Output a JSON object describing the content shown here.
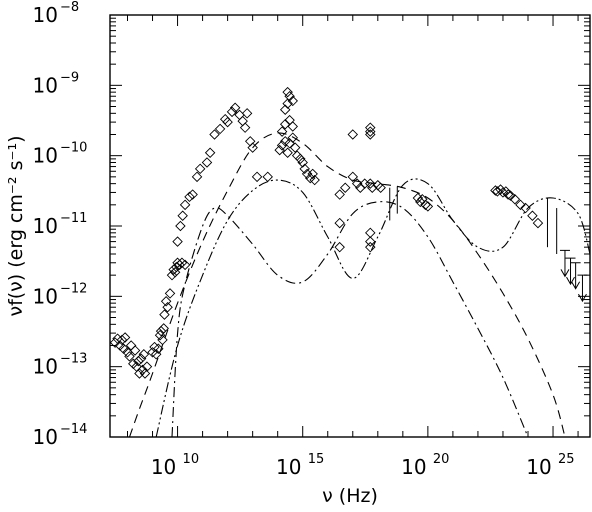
{
  "chart_data": {
    "type": "scatter",
    "title": "",
    "xlabel": "ν (Hz)",
    "ylabel": "νf(ν) (erg cm⁻² s⁻¹)",
    "x_scale": "log",
    "y_scale": "log",
    "xlim": [
      20000000.0,
      3e+26
    ],
    "ylim": [
      1e-14,
      1e-08
    ],
    "grid": false,
    "legend": "none",
    "x_ticks": [
      {
        "value": 10000000000.0,
        "base": "10",
        "exp": "10"
      },
      {
        "value": 1000000000000000.0,
        "base": "10",
        "exp": "15"
      },
      {
        "value": 1e+20,
        "base": "10",
        "exp": "20"
      },
      {
        "value": 1e+25,
        "base": "10",
        "exp": "25"
      }
    ],
    "y_ticks": [
      {
        "value": 1e-14,
        "base": "10",
        "exp": "−14"
      },
      {
        "value": 1e-13,
        "base": "10",
        "exp": "−13"
      },
      {
        "value": 1e-12,
        "base": "10",
        "exp": "−12"
      },
      {
        "value": 1e-11,
        "base": "10",
        "exp": "−11"
      },
      {
        "value": 1e-10,
        "base": "10",
        "exp": "−10"
      },
      {
        "value": 1e-09,
        "base": "10",
        "exp": "−9"
      },
      {
        "value": 1e-08,
        "base": "10",
        "exp": "−8"
      }
    ],
    "series": [
      {
        "marker": "diamond-open",
        "points": [
          [
            32000000.0,
            2.2e-13
          ],
          [
            40000000.0,
            2.5e-13
          ],
          [
            50000000.0,
            2e-13
          ],
          [
            60000000.0,
            2.4e-13
          ],
          [
            70000000.0,
            1.8e-13
          ],
          [
            80000000.0,
            2.6e-13
          ],
          [
            100000000.0,
            1.6e-13
          ],
          [
            120000000.0,
            1.4e-13
          ],
          [
            140000000.0,
            2e-13
          ],
          [
            170000000.0,
            1.1e-13
          ],
          [
            200000000.0,
            1.7e-13
          ],
          [
            230000000.0,
            1e-13
          ],
          [
            270000000.0,
            1.2e-13
          ],
          [
            300000000.0,
            8e-14
          ],
          [
            350000000.0,
            1.3e-13
          ],
          [
            400000000.0,
            9e-14
          ],
          [
            450000000.0,
            1.5e-13
          ],
          [
            500000000.0,
            8e-14
          ],
          [
            600000000.0,
            1e-13
          ],
          [
            1000000000.0,
            1.6e-13
          ],
          [
            1200000000.0,
            1.9e-13
          ],
          [
            1400000000.0,
            1.5e-13
          ],
          [
            1700000000.0,
            1.8e-13
          ],
          [
            2000000000.0,
            2.8e-13
          ],
          [
            2200000000.0,
            3.2e-13
          ],
          [
            2500000000.0,
            2.4e-13
          ],
          [
            2800000000.0,
            3.5e-13
          ],
          [
            3000000000.0,
            5.5e-13
          ],
          [
            3500000000.0,
            8.5e-13
          ],
          [
            4000000000.0,
            7e-13
          ],
          [
            5000000000.0,
            1.1e-12
          ],
          [
            6000000000.0,
            2e-12
          ],
          [
            7000000000.0,
            2.4e-12
          ],
          [
            8000000000.0,
            2.2e-12
          ],
          [
            9000000000.0,
            2.6e-12
          ],
          [
            10000000000.0,
            3e-12
          ],
          [
            12000000000.0,
            2.8e-12
          ],
          [
            15000000000.0,
            3e-12
          ],
          [
            20000000000.0,
            2.8e-12
          ],
          [
            10000000000.0,
            6e-12
          ],
          [
            13000000000.0,
            1e-11
          ],
          [
            16000000000.0,
            1.4e-11
          ],
          [
            20000000000.0,
            2e-11
          ],
          [
            30000000000.0,
            2.6e-11
          ],
          [
            40000000000.0,
            2.8e-11
          ],
          [
            60000000000.0,
            5e-11
          ],
          [
            80000000000.0,
            6.5e-11
          ],
          [
            150000000000.0,
            8e-11
          ],
          [
            200000000000.0,
            1.1e-10
          ],
          [
            300000000000.0,
            2e-10
          ],
          [
            500000000000.0,
            2.4e-10
          ],
          [
            800000000000.0,
            3.3e-10
          ],
          [
            1000000000000.0,
            3e-10
          ],
          [
            1500000000000.0,
            4.2e-10
          ],
          [
            2000000000000.0,
            4.8e-10
          ],
          [
            3000000000000.0,
            3.8e-10
          ],
          [
            4000000000000.0,
            3.1e-10
          ],
          [
            5000000000000.0,
            2.5e-10
          ],
          [
            6000000000000.0,
            4e-10
          ],
          [
            8000000000000.0,
            1.6e-10
          ],
          [
            10000000000000.0,
            1.3e-10
          ],
          [
            120000000000000.0,
            1.2e-10
          ],
          [
            150000000000000.0,
            1.4e-10
          ],
          [
            200000000000000.0,
            1.6e-10
          ],
          [
            250000000000000.0,
            1.1e-10
          ],
          [
            300000000000000.0,
            1.5e-10
          ],
          [
            400000000000000.0,
            1.8e-10
          ],
          [
            500000000000000.0,
            1.3e-10
          ],
          [
            600000000000000.0,
            1e-10
          ],
          [
            800000000000000.0,
            9e-11
          ],
          [
            1000000000000000.0,
            8e-11
          ],
          [
            1200000000000000.0,
            6.5e-11
          ],
          [
            1500000000000000.0,
            5.5e-11
          ],
          [
            2000000000000000.0,
            4.8e-11
          ],
          [
            2500000000000000.0,
            5.5e-11
          ],
          [
            3000000000000000.0,
            4.5e-11
          ],
          [
            150000000000000.0,
            2.2e-10
          ],
          [
            200000000000000.0,
            2.8e-10
          ],
          [
            300000000000000.0,
            3.2e-10
          ],
          [
            400000000000000.0,
            2.6e-10
          ],
          [
            200000000000000.0,
            4.5e-10
          ],
          [
            250000000000000.0,
            5.5e-10
          ],
          [
            300000000000000.0,
            7e-10
          ],
          [
            400000000000000.0,
            6e-10
          ],
          [
            250000000000000.0,
            8e-10
          ],
          [
            15000000000000.0,
            5e-11
          ],
          [
            40000000000000.0,
            5e-11
          ],
          [
            1e+17,
            5e-11
          ],
          [
            1.5e+17,
            4e-11
          ],
          [
            2e+17,
            3.5e-11
          ],
          [
            3e+17,
            4e-11
          ],
          [
            5e+17,
            4e-11
          ],
          [
            6e+17,
            3.5e-11
          ],
          [
            1e+18,
            3.8e-11
          ],
          [
            1.3e+18,
            3.5e-11
          ],
          [
            3e+16,
            1.1e-11
          ],
          [
            3e+16,
            2.8e-11
          ],
          [
            5e+16,
            3.5e-11
          ],
          [
            5e+17,
            8e-12
          ],
          [
            5e+17,
            6e-12
          ],
          [
            5e+17,
            5e-12
          ],
          [
            5e+17,
            2.5e-10
          ],
          [
            5e+17,
            2e-10
          ],
          [
            5e+17,
            2.2e-10
          ],
          [
            1e+17,
            2e-10
          ],
          [
            3e+16,
            5e-12
          ],
          [
            5e+19,
            2.2e-11
          ],
          [
            6e+19,
            2.4e-11
          ],
          [
            8e+19,
            2e-11
          ],
          [
            1e+20,
            1.9e-11
          ],
          [
            4e+19,
            2.5e-11
          ],
          [
            5e+22,
            3.2e-11
          ],
          [
            6e+22,
            3.1e-11
          ],
          [
            8e+22,
            3.3e-11
          ],
          [
            1e+23,
            3e-11
          ],
          [
            1.3e+23,
            3.1e-11
          ],
          [
            1.6e+23,
            2.8e-11
          ],
          [
            2e+23,
            2.7e-11
          ],
          [
            3e+23,
            2.4e-11
          ],
          [
            5e+23,
            2e-11
          ],
          [
            8e+23,
            1.8e-11
          ],
          [
            1.5e+24,
            1.4e-11
          ],
          [
            2.5e+24,
            1.1e-11
          ]
        ]
      },
      {
        "marker": "arrow-down-upper-limit",
        "points": [
          [
            3e+25,
            4.5e-12
          ],
          [
            5e+25,
            3.5e-12
          ],
          [
            8e+25,
            3e-12
          ],
          [
            1.5e+26,
            2e-12
          ]
        ]
      },
      {
        "marker": "errorbar-vertical",
        "points": [
          [
            3e+18,
            2e-11,
            1.2e-11,
            3.5e-11
          ],
          [
            6e+18,
            2.3e-11,
            1.5e-11,
            3.6e-11
          ],
          [
            6e+24,
            1.1e-11,
            5e-12,
            2.5e-11
          ],
          [
            1.4e+25,
            9e-12,
            4e-12,
            1.8e-11
          ]
        ]
      },
      {
        "style": "dashed",
        "points": [
          [
            120000000.0,
            1e-14
          ],
          [
            300000000.0,
            2.5e-14
          ],
          [
            1000000000.0,
            8e-14
          ],
          [
            10000000000.0,
            8e-13
          ],
          [
            100000000000.0,
            6e-12
          ],
          [
            1000000000000.0,
            3.2e-11
          ],
          [
            10000000000000.0,
            1.3e-10
          ],
          [
            100000000000000.0,
            2.1e-10
          ],
          [
            1000000000000000.0,
            1.5e-10
          ],
          [
            1e+16,
            7e-11
          ],
          [
            1e+17,
            4.5e-11
          ],
          [
            1e+18,
            4e-11
          ],
          [
            1e+19,
            3.5e-11
          ],
          [
            1e+20,
            2.5e-11
          ],
          [
            1e+21,
            1.2e-11
          ],
          [
            1e+22,
            4e-12
          ],
          [
            1e+23,
            1.1e-12
          ],
          [
            1e+24,
            2.5e-13
          ],
          [
            1e+25,
            4e-14
          ],
          [
            3e+25,
            1e-14
          ]
        ]
      },
      {
        "style": "dash-dot",
        "points": [
          [
            6000000000.0,
            1e-14
          ],
          [
            10000000000.0,
            3e-13
          ],
          [
            20000000000.0,
            1.5e-12
          ],
          [
            100000000000.0,
            1e-11
          ],
          [
            300000000000.0,
            1.8e-11
          ],
          [
            1000000000000.0,
            1.4e-11
          ],
          [
            10000000000000.0,
            5.5e-12
          ],
          [
            100000000000000.0,
            2e-12
          ],
          [
            1000000000000000.0,
            1.6e-12
          ],
          [
            1e+16,
            4e-12
          ],
          [
            1e+17,
            1.5e-11
          ],
          [
            1e+18,
            2.2e-11
          ],
          [
            1e+19,
            1.8e-11
          ],
          [
            1e+20,
            7e-12
          ],
          [
            1e+21,
            1.6e-12
          ],
          [
            1e+22,
            3.5e-13
          ],
          [
            1e+23,
            7e-14
          ],
          [
            1e+24,
            1e-14
          ]
        ]
      },
      {
        "style": "dash-dot-dot",
        "points": [
          [
            1400000000.0,
            1e-14
          ],
          [
            10000000000.0,
            2e-13
          ],
          [
            100000000000.0,
            2e-12
          ],
          [
            1000000000000.0,
            1.2e-11
          ],
          [
            10000000000000.0,
            3.2e-11
          ],
          [
            100000000000000.0,
            4.5e-11
          ],
          [
            1000000000000000.0,
            3e-11
          ],
          [
            1e+16,
            7e-12
          ],
          [
            1e+17,
            1.8e-12
          ],
          [
            1e+18,
            7e-12
          ],
          [
            1e+19,
            3.8e-11
          ],
          [
            1e+20,
            4e-11
          ],
          [
            1e+21,
            1.2e-11
          ],
          [
            1e+22,
            5e-12
          ],
          [
            1e+23,
            5e-12
          ],
          [
            1e+24,
            1.8e-11
          ],
          [
            1e+25,
            2.5e-11
          ],
          [
            1e+26,
            1.5e-11
          ],
          [
            3e+26,
            4e-12
          ]
        ]
      }
    ]
  }
}
